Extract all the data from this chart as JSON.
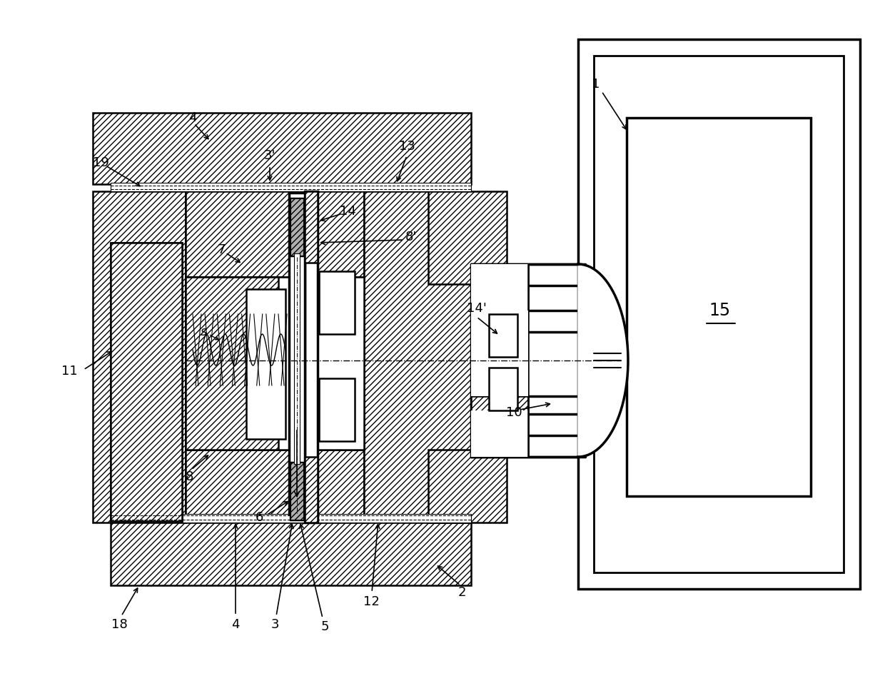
{
  "bg_color": "#ffffff",
  "fig_width": 12.4,
  "fig_height": 9.47,
  "dpi": 100,
  "lw_main": 1.8,
  "lw_thick": 2.5,
  "hatch_density": "////",
  "gray_fill": "#b0b0b0"
}
